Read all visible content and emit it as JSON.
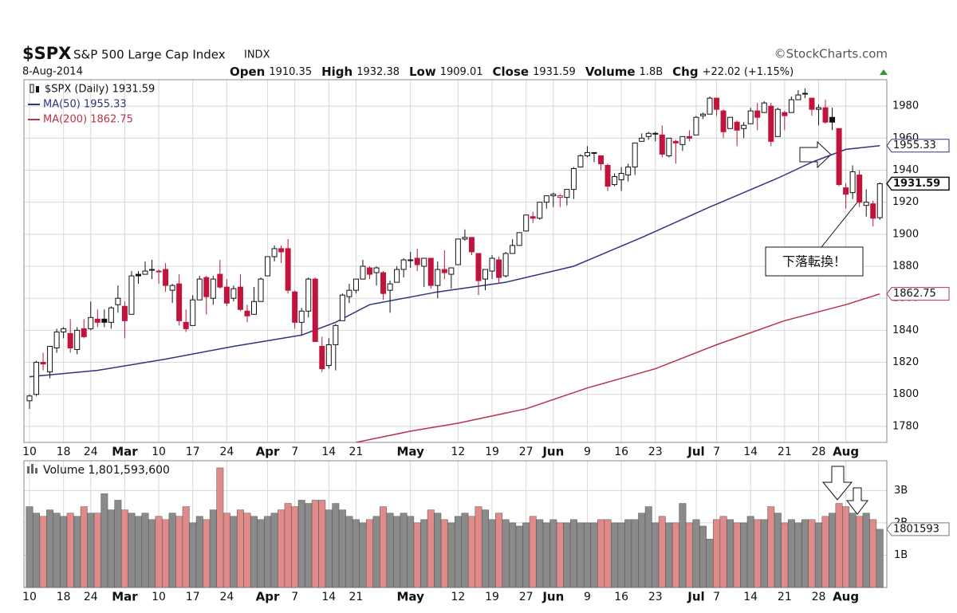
{
  "chart_data": {
    "type": "candlestick",
    "header": {
      "symbol": "$SPX",
      "name": "S&P 500 Large Cap Index",
      "exchange": "INDX",
      "date": "8-Aug-2014",
      "quote": [
        {
          "label": "Open",
          "value": "1910.35"
        },
        {
          "label": "High",
          "value": "1932.38"
        },
        {
          "label": "Low",
          "value": "1909.01"
        },
        {
          "label": "Close",
          "value": "1931.59"
        },
        {
          "label": "Volume",
          "value": "1.8B"
        },
        {
          "label": "Chg",
          "value": "+22.02 (+1.15%)"
        }
      ],
      "credit": "©StockCharts.com"
    },
    "price_legend": "$SPX (Daily) 1931.59",
    "annotation": "下落転換！",
    "categories": [
      "10",
      null,
      null,
      null,
      null,
      "18",
      null,
      null,
      null,
      "24",
      null,
      null,
      null,
      null,
      "Mar",
      null,
      null,
      null,
      null,
      "10",
      null,
      null,
      null,
      null,
      "17",
      null,
      null,
      null,
      null,
      "24",
      null,
      null,
      null,
      null,
      null,
      "Apr",
      null,
      null,
      null,
      "7",
      null,
      null,
      null,
      null,
      "14",
      null,
      null,
      null,
      "21",
      null,
      null,
      null,
      null,
      null,
      null,
      null,
      "May",
      null,
      null,
      null,
      null,
      null,
      null,
      "12",
      null,
      null,
      null,
      null,
      "19",
      null,
      null,
      null,
      null,
      "27",
      null,
      null,
      null,
      "Jun",
      null,
      null,
      null,
      null,
      "9",
      null,
      null,
      null,
      null,
      "16",
      null,
      null,
      null,
      null,
      "23",
      null,
      null,
      null,
      null,
      null,
      "Jul",
      null,
      null,
      "7",
      null,
      null,
      null,
      null,
      "14",
      null,
      null,
      null,
      null,
      "21",
      null,
      null,
      null,
      null,
      "28",
      null,
      null,
      null,
      "Aug",
      null,
      null,
      null,
      null,
      null
    ],
    "ohlc": [
      [
        1796,
        1800,
        1791,
        1799
      ],
      [
        1800,
        1821,
        1799,
        1820
      ],
      [
        1820,
        1826,
        1815,
        1819
      ],
      [
        1814,
        1830,
        1810,
        1830
      ],
      [
        1829,
        1841,
        1826,
        1839
      ],
      [
        1839,
        1842,
        1835,
        1841
      ],
      [
        1838,
        1847,
        1826,
        1829
      ],
      [
        1828,
        1842,
        1825,
        1840
      ],
      [
        1841,
        1847,
        1835,
        1836
      ],
      [
        1841,
        1858,
        1840,
        1848
      ],
      [
        1847,
        1853,
        1842,
        1845
      ],
      [
        1847,
        1853,
        1842,
        1845
      ],
      [
        1845,
        1855,
        1841,
        1854
      ],
      [
        1856,
        1868,
        1851,
        1860
      ],
      [
        1855,
        1858,
        1835,
        1846
      ],
      [
        1850,
        1877,
        1850,
        1874
      ],
      [
        1875,
        1877,
        1869,
        1874
      ],
      [
        1875,
        1883,
        1875,
        1877
      ],
      [
        1878,
        1884,
        1872,
        1878
      ],
      [
        1877,
        1878,
        1869,
        1877
      ],
      [
        1878,
        1882,
        1864,
        1868
      ],
      [
        1865,
        1869,
        1857,
        1868
      ],
      [
        1869,
        1875,
        1843,
        1846
      ],
      [
        1845,
        1853,
        1839,
        1841
      ],
      [
        1843,
        1862,
        1843,
        1859
      ],
      [
        1859,
        1874,
        1859,
        1872
      ],
      [
        1873,
        1874,
        1850,
        1861
      ],
      [
        1860,
        1874,
        1856,
        1872
      ],
      [
        1875,
        1884,
        1866,
        1867
      ],
      [
        1867,
        1872,
        1855,
        1857
      ],
      [
        1860,
        1868,
        1858,
        1866
      ],
      [
        1867,
        1875,
        1852,
        1853
      ],
      [
        1852,
        1856,
        1845,
        1849
      ],
      [
        1850,
        1867,
        1850,
        1858
      ],
      [
        1858,
        1873,
        1858,
        1872
      ],
      [
        1874,
        1886,
        1874,
        1886
      ],
      [
        1886,
        1893,
        1883,
        1891
      ],
      [
        1891,
        1893,
        1882,
        1889
      ],
      [
        1891,
        1897,
        1863,
        1865
      ],
      [
        1864,
        1865,
        1841,
        1845
      ],
      [
        1845,
        1854,
        1837,
        1852
      ],
      [
        1852,
        1873,
        1848,
        1872
      ],
      [
        1872,
        1873,
        1833,
        1833
      ],
      [
        1830,
        1836,
        1814,
        1816
      ],
      [
        1818,
        1835,
        1816,
        1831
      ],
      [
        1831,
        1844,
        1815,
        1843
      ],
      [
        1846,
        1863,
        1846,
        1862
      ],
      [
        1861,
        1869,
        1857,
        1865
      ],
      [
        1865,
        1872,
        1863,
        1872
      ],
      [
        1872,
        1884,
        1872,
        1880
      ],
      [
        1879,
        1880,
        1872,
        1875
      ],
      [
        1876,
        1880,
        1868,
        1879
      ],
      [
        1876,
        1877,
        1859,
        1863
      ],
      [
        1865,
        1871,
        1851,
        1869
      ],
      [
        1870,
        1880,
        1870,
        1878
      ],
      [
        1878,
        1885,
        1873,
        1884
      ],
      [
        1884,
        1889,
        1879,
        1884
      ],
      [
        1885,
        1891,
        1877,
        1881
      ],
      [
        1880,
        1885,
        1867,
        1885
      ],
      [
        1885,
        1885,
        1866,
        1868
      ],
      [
        1868,
        1883,
        1860,
        1878
      ],
      [
        1878,
        1890,
        1872,
        1876
      ],
      [
        1875,
        1879,
        1866,
        1879
      ],
      [
        1881,
        1897,
        1881,
        1897
      ],
      [
        1897,
        1903,
        1896,
        1898
      ],
      [
        1898,
        1898,
        1887,
        1889
      ],
      [
        1888,
        1888,
        1862,
        1871
      ],
      [
        1872,
        1878,
        1865,
        1878
      ],
      [
        1877,
        1887,
        1872,
        1885
      ],
      [
        1884,
        1886,
        1869,
        1873
      ],
      [
        1874,
        1889,
        1873,
        1888
      ],
      [
        1888,
        1897,
        1888,
        1893
      ],
      [
        1893,
        1901,
        1893,
        1901
      ],
      [
        1902,
        1912,
        1902,
        1912
      ],
      [
        1911,
        1914,
        1907,
        1910
      ],
      [
        1910,
        1920,
        1909,
        1920
      ],
      [
        1920,
        1924,
        1916,
        1924
      ],
      [
        1924,
        1926,
        1917,
        1925
      ],
      [
        1923,
        1925,
        1917,
        1924
      ],
      [
        1923,
        1928,
        1918,
        1928
      ],
      [
        1928,
        1942,
        1922,
        1941
      ],
      [
        1942,
        1950,
        1942,
        1949
      ],
      [
        1949,
        1955,
        1948,
        1951
      ],
      [
        1951,
        1951,
        1945,
        1951
      ],
      [
        1949,
        1949,
        1940,
        1944
      ],
      [
        1943,
        1944,
        1927,
        1930
      ],
      [
        1931,
        1938,
        1930,
        1936
      ],
      [
        1934,
        1942,
        1927,
        1938
      ],
      [
        1937,
        1944,
        1933,
        1942
      ],
      [
        1942,
        1957,
        1937,
        1957
      ],
      [
        1958,
        1963,
        1958,
        1960
      ],
      [
        1961,
        1964,
        1959,
        1963
      ],
      [
        1963,
        1964,
        1958,
        1963
      ],
      [
        1962,
        1968,
        1948,
        1950
      ],
      [
        1949,
        1960,
        1948,
        1960
      ],
      [
        1958,
        1959,
        1944,
        1957
      ],
      [
        1956,
        1961,
        1952,
        1961
      ],
      [
        1961,
        1965,
        1958,
        1960
      ],
      [
        1962,
        1974,
        1962,
        1973
      ],
      [
        1974,
        1976,
        1972,
        1975
      ],
      [
        1975,
        1986,
        1975,
        1985
      ],
      [
        1985,
        1985,
        1974,
        1978
      ],
      [
        1977,
        1978,
        1960,
        1964
      ],
      [
        1966,
        1973,
        1966,
        1973
      ],
      [
        1970,
        1971,
        1955,
        1965
      ],
      [
        1966,
        1970,
        1960,
        1968
      ],
      [
        1969,
        1979,
        1969,
        1977
      ],
      [
        1977,
        1982,
        1965,
        1973
      ],
      [
        1976,
        1983,
        1976,
        1982
      ],
      [
        1980,
        1982,
        1955,
        1958
      ],
      [
        1961,
        1979,
        1961,
        1978
      ],
      [
        1976,
        1977,
        1965,
        1974
      ],
      [
        1976,
        1986,
        1976,
        1984
      ],
      [
        1984,
        1990,
        1984,
        1987
      ],
      [
        1988,
        1991,
        1985,
        1988
      ],
      [
        1985,
        1985,
        1974,
        1978
      ],
      [
        1978,
        1981,
        1968,
        1979
      ],
      [
        1979,
        1984,
        1969,
        1970
      ],
      [
        1973,
        1979,
        1965,
        1970
      ],
      [
        1966,
        1966,
        1930,
        1931
      ],
      [
        1929,
        1932,
        1916,
        1925
      ],
      [
        1926,
        1943,
        1922,
        1939
      ],
      [
        1937,
        1940,
        1917,
        1920
      ],
      [
        1918,
        1928,
        1911,
        1920
      ],
      [
        1919,
        1921,
        1905,
        1910
      ],
      [
        1910.35,
        1932.38,
        1909.01,
        1931.59
      ]
    ],
    "up_color": "#111111",
    "down_color": "#c0143c",
    "ylim": [
      1770,
      1996.5
    ],
    "yticks": [
      1780,
      1800,
      1820,
      1840,
      1860,
      1880,
      1900,
      1920,
      1940,
      1960,
      1980
    ],
    "grid": true,
    "series": [
      {
        "name": "MA(50) 1955.33",
        "color": "#2e3580",
        "x": [
          0,
          10,
          20,
          30,
          40,
          45,
          50,
          60,
          70,
          80,
          90,
          100,
          110,
          115,
          120,
          125
        ],
        "values": [
          1811,
          1815,
          1822,
          1830,
          1837,
          1845,
          1856,
          1864,
          1870,
          1880,
          1898,
          1917,
          1935,
          1945,
          1953,
          1955.33
        ]
      },
      {
        "name": "MA(200) 1862.75",
        "color": "#b8344a",
        "x": [
          48,
          56,
          63,
          73,
          82,
          92,
          101,
          111,
          120,
          125
        ],
        "values": [
          1770,
          1777,
          1782,
          1791,
          1804,
          1816,
          1831,
          1846,
          1856,
          1862.75
        ]
      }
    ],
    "price_tags": [
      1955.33,
      1931.59,
      1862.75
    ],
    "volume": {
      "label": "Volume 1,801,593,600",
      "values": [
        2500000000.0,
        2300000000.0,
        2200000000.0,
        2400000000.0,
        2300000000.0,
        2200000000.0,
        2300000000.0,
        2200000000.0,
        2500000000.0,
        2300000000.0,
        2300000000.0,
        2900000000.0,
        2400000000.0,
        2700000000.0,
        2400000000.0,
        2300000000.0,
        2200000000.0,
        2300000000.0,
        2100000000.0,
        2200000000.0,
        2100000000.0,
        2300000000.0,
        2200000000.0,
        2500000000.0,
        2000000000.0,
        2200000000.0,
        2100000000.0,
        2400000000.0,
        3700000000.0,
        2300000000.0,
        2200000000.0,
        2400000000.0,
        2300000000.0,
        2200000000.0,
        2100000000.0,
        2200000000.0,
        2300000000.0,
        2400000000.0,
        2600000000.0,
        2500000000.0,
        2700000000.0,
        2600000000.0,
        2700000000.0,
        2700000000.0,
        2400000000.0,
        2600000000.0,
        2400000000.0,
        2200000000.0,
        2100000000.0,
        2000000000.0,
        2100000000.0,
        2200000000.0,
        2500000000.0,
        2300000000.0,
        2200000000.0,
        2300000000.0,
        2200000000.0,
        2000000000.0,
        2100000000.0,
        2400000000.0,
        2300000000.0,
        2100000000.0,
        2000000000.0,
        2200000000.0,
        2300000000.0,
        2200000000.0,
        2500000000.0,
        2400000000.0,
        2100000000.0,
        2300000000.0,
        2100000000.0,
        2000000000.0,
        1900000000.0,
        2000000000.0,
        2200000000.0,
        2100000000.0,
        2000000000.0,
        2100000000.0,
        2000000000.0,
        2000000000.0,
        2100000000.0,
        2000000000.0,
        2000000000.0,
        2000000000.0,
        2100000000.0,
        2100000000.0,
        2000000000.0,
        2000000000.0,
        2100000000.0,
        2100000000.0,
        2300000000.0,
        2500000000.0,
        2000000000.0,
        2200000000.0,
        2000000000.0,
        2000000000.0,
        2600000000.0,
        2000000000.0,
        2100000000.0,
        1900000000.0,
        1500000000.0,
        2100000000.0,
        2200000000.0,
        2100000000.0,
        2000000000.0,
        2000000000.0,
        2200000000.0,
        2100000000.0,
        2100000000.0,
        2500000000.0,
        2300000000.0,
        2000000000.0,
        2100000000.0,
        2000000000.0,
        2100000000.0,
        2100000000.0,
        2000000000.0,
        2200000000.0,
        2300000000.0,
        2600000000.0,
        2500000000.0,
        2300000000.0,
        2200000000.0,
        2300000000.0,
        2100000000.0,
        1801593600
      ],
      "up_color": "#8a8a8a",
      "down_color": "#e08a8a",
      "ylim": [
        0,
        3920000000.0
      ],
      "yticks": [
        {
          "value": 1000000000,
          "label": "1B"
        },
        {
          "value": 2000000000,
          "label": "2B"
        },
        {
          "value": 3000000000,
          "label": "3B"
        }
      ],
      "tag": 1801593
    }
  }
}
